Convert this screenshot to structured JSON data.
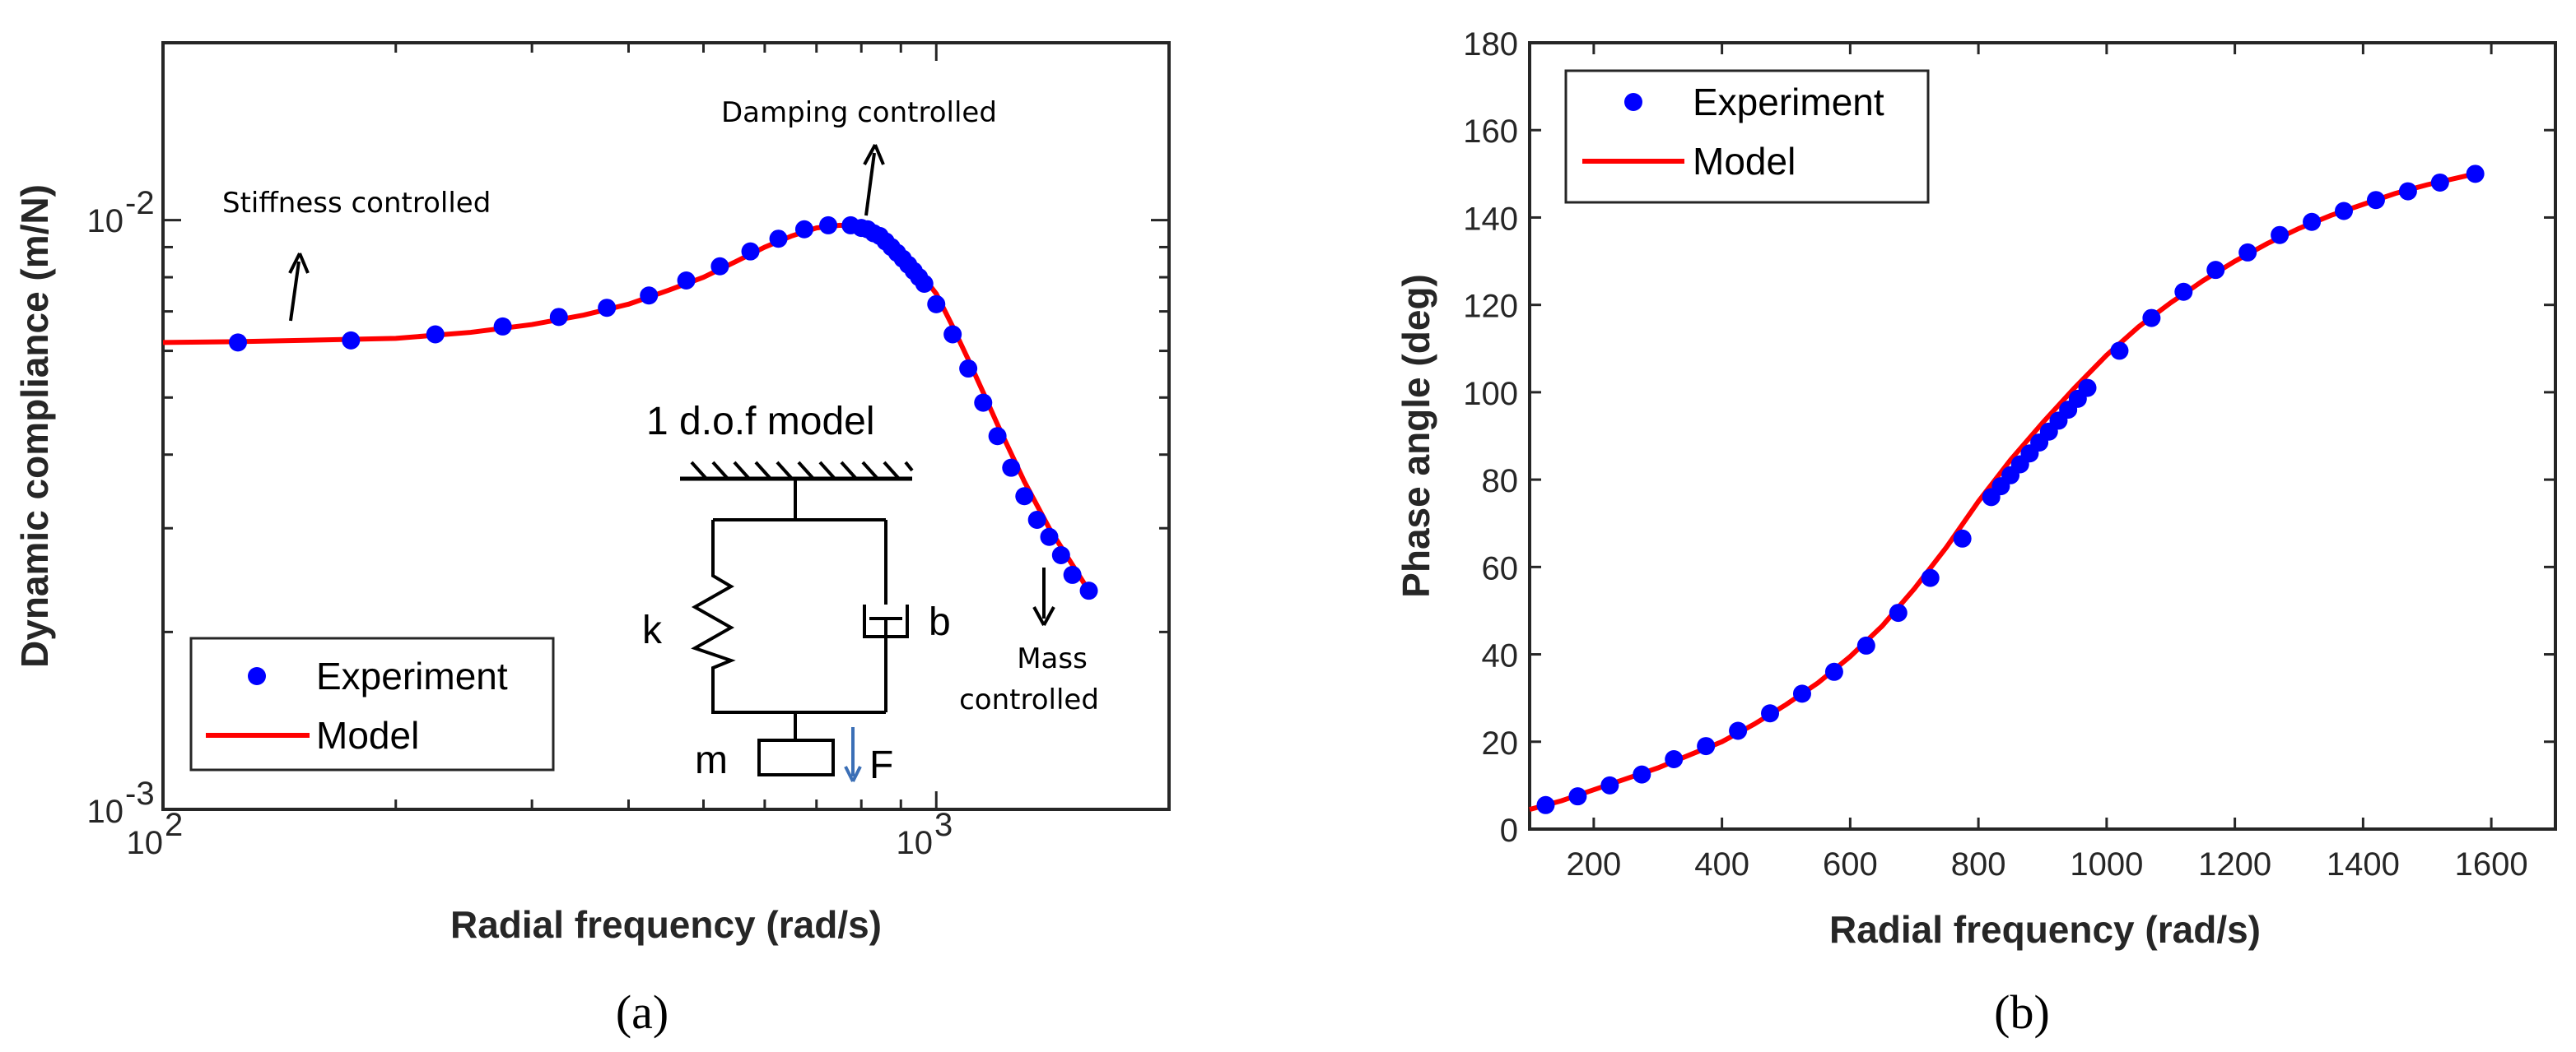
{
  "chart_data": [
    {
      "type": "line",
      "panel_label": "(a)",
      "title": "",
      "xlabel": "Radial frequency (rad/s)",
      "ylabel": "Dynamic compliance (m/N)",
      "xscale": "log",
      "yscale": "log",
      "xlim": [
        100,
        2000
      ],
      "ylim": [
        0.001,
        0.02
      ],
      "xtick_labels": [
        {
          "base": "10",
          "exp": "2"
        },
        {
          "base": "10",
          "exp": "3"
        }
      ],
      "ytick_labels": [
        {
          "base": "10",
          "exp": "-3"
        },
        {
          "base": "10",
          "exp": "-2"
        }
      ],
      "legend": {
        "position": "bottom-left",
        "entries": [
          "Experiment",
          "Model"
        ]
      },
      "series": [
        {
          "name": "Experiment",
          "style": "marker",
          "color": "#0000ff",
          "x": [
            125,
            175,
            225,
            275,
            325,
            375,
            425,
            475,
            525,
            575,
            625,
            675,
            725,
            775,
            800,
            815,
            830,
            845,
            860,
            875,
            890,
            905,
            920,
            935,
            950,
            965,
            1000,
            1050,
            1100,
            1150,
            1200,
            1250,
            1300,
            1350,
            1400,
            1450,
            1500,
            1575
          ],
          "y": [
            0.0062,
            0.00625,
            0.0064,
            0.0066,
            0.00685,
            0.0071,
            0.00745,
            0.0079,
            0.00835,
            0.00885,
            0.0093,
            0.00965,
            0.0098,
            0.0098,
            0.0097,
            0.00965,
            0.0095,
            0.0094,
            0.0092,
            0.009,
            0.0088,
            0.0086,
            0.0084,
            0.0082,
            0.008,
            0.0078,
            0.0072,
            0.0064,
            0.0056,
            0.0049,
            0.0043,
            0.0038,
            0.0034,
            0.0031,
            0.0029,
            0.0027,
            0.0025,
            0.00235
          ]
        },
        {
          "name": "Model",
          "style": "line",
          "color": "#ff0000",
          "x": [
            100,
            125,
            150,
            200,
            250,
            300,
            350,
            400,
            450,
            500,
            550,
            600,
            650,
            700,
            750,
            790,
            820,
            850,
            880,
            910,
            940,
            970,
            1000,
            1050,
            1100,
            1150,
            1200,
            1300,
            1400,
            1500,
            1575
          ],
          "y": [
            0.0062,
            0.00622,
            0.00625,
            0.0063,
            0.00645,
            0.00665,
            0.0069,
            0.0072,
            0.0076,
            0.008,
            0.0085,
            0.009,
            0.0094,
            0.0097,
            0.0098,
            0.00975,
            0.00965,
            0.0094,
            0.0091,
            0.0087,
            0.0083,
            0.0079,
            0.0075,
            0.0066,
            0.0058,
            0.0051,
            0.0045,
            0.0036,
            0.003,
            0.0026,
            0.00235
          ]
        }
      ],
      "annotations": [
        "Stiffness controlled",
        "Damping controlled",
        "Mass controlled"
      ],
      "mass_label_lines": [
        "Mass",
        "controlled"
      ],
      "inset": {
        "title": "1 d.o.f model",
        "spring": "k",
        "damper": "b",
        "mass": "m",
        "force": "F"
      }
    },
    {
      "type": "line",
      "panel_label": "(b)",
      "title": "",
      "xlabel": "Radial frequency (rad/s)",
      "ylabel": "Phase angle (deg)",
      "xscale": "linear",
      "yscale": "linear",
      "xlim": [
        100,
        1700
      ],
      "ylim": [
        0,
        180
      ],
      "xticks": [
        200,
        400,
        600,
        800,
        1000,
        1200,
        1400,
        1600
      ],
      "yticks": [
        0,
        20,
        40,
        60,
        80,
        100,
        120,
        140,
        160,
        180
      ],
      "legend": {
        "position": "top-left",
        "entries": [
          "Experiment",
          "Model"
        ]
      },
      "series": [
        {
          "name": "Experiment",
          "style": "marker",
          "color": "#0000ff",
          "x": [
            125,
            175,
            225,
            275,
            325,
            375,
            425,
            475,
            525,
            575,
            625,
            675,
            725,
            775,
            820,
            835,
            850,
            865,
            880,
            895,
            910,
            925,
            940,
            955,
            970,
            1020,
            1070,
            1120,
            1170,
            1220,
            1270,
            1320,
            1370,
            1420,
            1470,
            1520,
            1575
          ],
          "y": [
            5.5,
            7.5,
            10,
            12.5,
            16,
            19,
            22.5,
            26.5,
            31,
            36,
            42,
            49.5,
            57.5,
            66.5,
            76,
            78.5,
            81,
            83.5,
            86,
            88.5,
            91,
            93.5,
            96,
            98.5,
            101,
            109.5,
            117,
            123,
            128,
            132,
            136,
            139,
            141.5,
            144,
            146,
            148,
            150
          ]
        },
        {
          "name": "Model",
          "style": "line",
          "color": "#ff0000",
          "x": [
            100,
            150,
            200,
            250,
            300,
            350,
            400,
            450,
            500,
            550,
            600,
            650,
            700,
            750,
            800,
            850,
            900,
            950,
            1000,
            1050,
            1100,
            1150,
            1200,
            1250,
            1300,
            1350,
            1400,
            1450,
            1500,
            1575
          ],
          "y": [
            4.5,
            6.5,
            9,
            11.5,
            14,
            17,
            20,
            24,
            28.5,
            33.5,
            39.5,
            46.5,
            55,
            64.5,
            75,
            84.5,
            93,
            101,
            108.5,
            115,
            120.5,
            125.5,
            130,
            134,
            137.5,
            140.5,
            143,
            145.5,
            147.5,
            150
          ]
        }
      ]
    }
  ]
}
